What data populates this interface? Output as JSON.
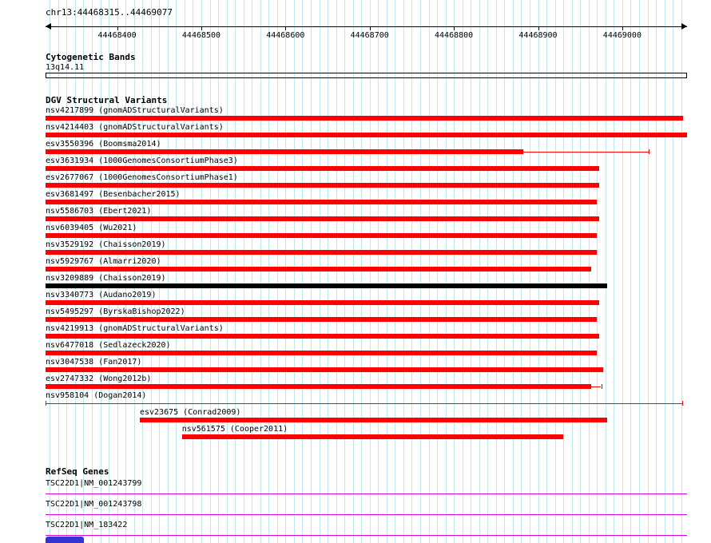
{
  "header": {
    "region": "chr13:44468315..44469077"
  },
  "colors": {
    "grid": "#bfe8ee",
    "ruler": "#000000",
    "variant_red": "#ff0000",
    "variant_black": "#000000",
    "gene": "#dd00dd",
    "bottom_widget": "#3434d3"
  },
  "chart_data": {
    "type": "genome-tracks",
    "title": "chr13:44468315..44469077",
    "axis": {
      "start": 44468315,
      "end": 44469077,
      "tick_interval": 100,
      "grid_interval": 10,
      "ticks": [
        44468400,
        44468500,
        44468600,
        44468700,
        44468800,
        44468900,
        44469000
      ]
    },
    "tracks": [
      {
        "name": "cytogenetic-bands",
        "title": "Cytogenetic Bands",
        "items": [
          {
            "label": "13q14.11",
            "start": 44468315,
            "end": 44469077,
            "glyph": "open-box"
          }
        ]
      },
      {
        "name": "dgv-structural-variants",
        "title": "DGV Structural Variants",
        "items": [
          {
            "label": "nsv4217899 (gnomADStructuralVariants)",
            "bar": [
              44468315,
              44469072
            ],
            "color": "#ff0000"
          },
          {
            "label": "nsv4214403 (gnomADStructuralVariants)",
            "bar": [
              44468315,
              44469077
            ],
            "color": "#ff0000"
          },
          {
            "label": "esv3550396 (Boomsma2014)",
            "bar": [
              44468315,
              44468882
            ],
            "ci": [
              44468882,
              44469031
            ],
            "color": "#ff0000"
          },
          {
            "label": "esv3631934 (1000GenomesConsortiumPhase3)",
            "bar": [
              44468315,
              44468973
            ],
            "color": "#ff0000"
          },
          {
            "label": "esv2677067 (1000GenomesConsortiumPhase1)",
            "bar": [
              44468315,
              44468973
            ],
            "color": "#ff0000"
          },
          {
            "label": "esv3681497 (Besenbacher2015)",
            "bar": [
              44468315,
              44468970
            ],
            "color": "#ff0000"
          },
          {
            "label": "nsv5586703 (Ebert2021)",
            "bar": [
              44468315,
              44468973
            ],
            "color": "#ff0000"
          },
          {
            "label": "nsv6039405 (Wu2021)",
            "bar": [
              44468315,
              44468970
            ],
            "color": "#ff0000"
          },
          {
            "label": "nsv3529192 (Chaisson2019)",
            "bar": [
              44468315,
              44468970
            ],
            "color": "#ff0000"
          },
          {
            "label": "nsv5929767 (Almarri2020)",
            "bar": [
              44468315,
              44468963
            ],
            "color": "#ff0000"
          },
          {
            "label": "nsv3209889 (Chaisson2019)",
            "bar": [
              44468315,
              44468982
            ],
            "color": "#000000"
          },
          {
            "label": "nsv3340773 (Audano2019)",
            "bar": [
              44468315,
              44468973
            ],
            "color": "#ff0000"
          },
          {
            "label": "nsv5495297 (ByrskaBishop2022)",
            "bar": [
              44468315,
              44468970
            ],
            "color": "#ff0000"
          },
          {
            "label": "nsv4219913 (gnomADStructuralVariants)",
            "bar": [
              44468315,
              44468973
            ],
            "color": "#ff0000"
          },
          {
            "label": "nsv6477018 (Sedlazeck2020)",
            "bar": [
              44468315,
              44468970
            ],
            "color": "#ff0000"
          },
          {
            "label": "nsv3047538 (Fan2017)",
            "bar": [
              44468315,
              44468977
            ],
            "color": "#ff0000"
          },
          {
            "label": "esv2747332 (Wong2012b)",
            "bar": [
              44468315,
              44468963
            ],
            "ci": [
              44468963,
              44468975
            ],
            "color": "#ff0000"
          },
          {
            "label": "nsv958104 (Dogan2014)",
            "range": [
              44468315,
              44469072
            ],
            "color": "#ff0000"
          },
          {
            "label": "esv23675 (Conrad2009)",
            "bar": [
              44468427,
              44468982
            ],
            "color": "#ff0000"
          },
          {
            "label": "nsv561575 (Cooper2011)",
            "bar": [
              44468477,
              44468930
            ],
            "color": "#ff0000"
          }
        ]
      },
      {
        "name": "refseq-genes",
        "title": "RefSeq Genes",
        "items": [
          {
            "label": "TSC22D1|NM_001243799",
            "start": 44468315,
            "end": 44469077
          },
          {
            "label": "TSC22D1|NM_001243798",
            "start": 44468315,
            "end": 44469077
          },
          {
            "label": "TSC22D1|NM_183422",
            "start": 44468315,
            "end": 44469077
          }
        ]
      }
    ]
  }
}
